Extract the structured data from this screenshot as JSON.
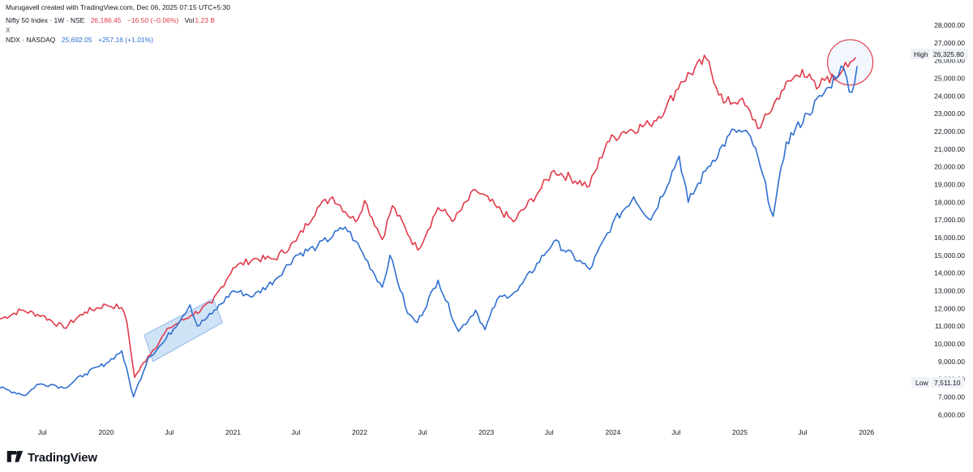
{
  "header": {
    "created_by": "Murugavell created with TradingView.com, Dec 06, 2025 07:15 UTC+5:30",
    "nifty": {
      "name": "Nifty 50 Index · 1W · NSE",
      "price": "26,186.45",
      "change": "−16.50 (−0.06%)",
      "vol_label": "Vol",
      "vol_value": "1.23 B"
    },
    "collapse": "X",
    "ndx": {
      "name": "NDX · NASDAQ",
      "price": "25,692.05",
      "change": "+257.16 (+1.01%)"
    }
  },
  "footer": {
    "brand": "TradingView"
  },
  "colors": {
    "nifty": "#e03a4a",
    "ndx": "#2f6fd1",
    "highlight_box": "#bcd6f2",
    "circle": "#e03a4a"
  },
  "chart_data": {
    "type": "line",
    "x_range": [
      "2019-03",
      "2026-05"
    ],
    "y_range": [
      5600,
      28600
    ],
    "grid": false,
    "y_ticks": [
      "6,000.00",
      "7,000.00",
      "8,000.00",
      "9,000.00",
      "10,000.00",
      "11,000.00",
      "12,000.00",
      "13,000.00",
      "14,000.00",
      "15,000.00",
      "16,000.00",
      "17,000.00",
      "18,000.00",
      "19,000.00",
      "20,000.00",
      "21,000.00",
      "22,000.00",
      "23,000.00",
      "24,000.00",
      "25,000.00",
      "26,000.00",
      "27,000.00",
      "28,000.00"
    ],
    "x_ticks": [
      "Jul",
      "2020",
      "Jul",
      "2021",
      "Jul",
      "2022",
      "Jul",
      "2023",
      "Jul",
      "2024",
      "Jul",
      "2025",
      "Jul",
      "2026"
    ],
    "high_label": "High",
    "high_value": "26,325.80",
    "low_label": "Low",
    "low_value": "7,511.10",
    "series": [
      {
        "name": "Nifty 50 Index",
        "points": [
          [
            "2019-03-01",
            11400
          ],
          [
            "2019-05-01",
            11900
          ],
          [
            "2019-07-01",
            11600
          ],
          [
            "2019-09-01",
            10900
          ],
          [
            "2019-11-01",
            11800
          ],
          [
            "2020-01-01",
            12200
          ],
          [
            "2020-02-15",
            12050
          ],
          [
            "2020-03-01",
            11200
          ],
          [
            "2020-03-23",
            8100
          ],
          [
            "2020-05-01",
            9300
          ],
          [
            "2020-07-01",
            10900
          ],
          [
            "2020-09-01",
            11600
          ],
          [
            "2020-11-01",
            12300
          ],
          [
            "2021-01-01",
            14300
          ],
          [
            "2021-03-01",
            14800
          ],
          [
            "2021-05-01",
            14800
          ],
          [
            "2021-07-01",
            15800
          ],
          [
            "2021-09-01",
            17700
          ],
          [
            "2021-10-15",
            18300
          ],
          [
            "2021-12-20",
            16900
          ],
          [
            "2022-01-15",
            18100
          ],
          [
            "2022-03-07",
            15900
          ],
          [
            "2022-04-05",
            17800
          ],
          [
            "2022-06-17",
            15300
          ],
          [
            "2022-08-15",
            17700
          ],
          [
            "2022-10-01",
            17000
          ],
          [
            "2022-12-01",
            18700
          ],
          [
            "2023-02-01",
            17700
          ],
          [
            "2023-03-20",
            16900
          ],
          [
            "2023-06-01",
            18600
          ],
          [
            "2023-07-15",
            19800
          ],
          [
            "2023-10-25",
            18900
          ],
          [
            "2023-12-15",
            21400
          ],
          [
            "2024-02-01",
            22000
          ],
          [
            "2024-04-15",
            22400
          ],
          [
            "2024-06-01",
            23300
          ],
          [
            "2024-07-15",
            24800
          ],
          [
            "2024-09-27",
            26100
          ],
          [
            "2024-11-15",
            23600
          ],
          [
            "2025-01-01",
            23800
          ],
          [
            "2025-03-01",
            22200
          ],
          [
            "2025-05-01",
            24300
          ],
          [
            "2025-06-30",
            25500
          ],
          [
            "2025-08-10",
            24400
          ],
          [
            "2025-09-10",
            25100
          ],
          [
            "2025-10-01",
            24900
          ],
          [
            "2025-11-01",
            25900
          ],
          [
            "2025-12-01",
            26186
          ]
        ]
      },
      {
        "name": "NDX",
        "points": [
          [
            "2019-03-01",
            7500
          ],
          [
            "2019-05-15",
            7100
          ],
          [
            "2019-06-15",
            7700
          ],
          [
            "2019-08-01",
            7700
          ],
          [
            "2019-09-01",
            7500
          ],
          [
            "2019-11-01",
            8300
          ],
          [
            "2020-01-01",
            8900
          ],
          [
            "2020-02-15",
            9600
          ],
          [
            "2020-03-20",
            7000
          ],
          [
            "2020-05-01",
            9200
          ],
          [
            "2020-06-15",
            10100
          ],
          [
            "2020-08-30",
            12200
          ],
          [
            "2020-09-20",
            11000
          ],
          [
            "2020-11-01",
            11700
          ],
          [
            "2021-01-01",
            13000
          ],
          [
            "2021-03-01",
            12700
          ],
          [
            "2021-05-01",
            13600
          ],
          [
            "2021-07-01",
            15000
          ],
          [
            "2021-09-01",
            15500
          ],
          [
            "2021-11-20",
            16600
          ],
          [
            "2021-12-20",
            15800
          ],
          [
            "2022-03-07",
            13200
          ],
          [
            "2022-03-29",
            15000
          ],
          [
            "2022-05-20",
            11700
          ],
          [
            "2022-06-16",
            11200
          ],
          [
            "2022-08-15",
            13600
          ],
          [
            "2022-10-13",
            10700
          ],
          [
            "2022-12-01",
            11900
          ],
          [
            "2022-12-28",
            10800
          ],
          [
            "2023-02-01",
            12500
          ],
          [
            "2023-04-01",
            13000
          ],
          [
            "2023-07-15",
            15800
          ],
          [
            "2023-10-26",
            14200
          ],
          [
            "2023-12-31",
            16800
          ],
          [
            "2024-03-01",
            18300
          ],
          [
            "2024-04-19",
            17000
          ],
          [
            "2024-07-10",
            20600
          ],
          [
            "2024-08-05",
            18000
          ],
          [
            "2024-10-01",
            20000
          ],
          [
            "2024-12-16",
            22100
          ],
          [
            "2025-02-01",
            21700
          ],
          [
            "2025-03-01",
            20000
          ],
          [
            "2025-04-07",
            17200
          ],
          [
            "2025-05-15",
            21400
          ],
          [
            "2025-07-15",
            23000
          ],
          [
            "2025-09-15",
            24500
          ],
          [
            "2025-10-20",
            25700
          ],
          [
            "2025-11-20",
            24200
          ],
          [
            "2025-12-05",
            25692
          ]
        ]
      }
    ]
  }
}
